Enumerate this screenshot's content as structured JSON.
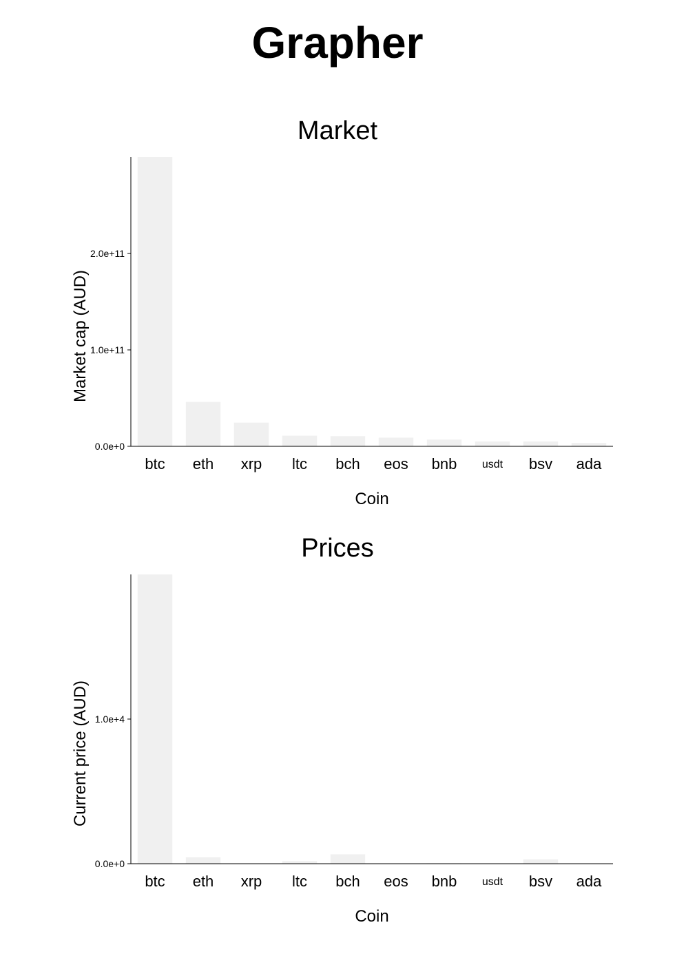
{
  "page": {
    "title": "Grapher"
  },
  "chart_data": [
    {
      "type": "bar",
      "title": "Market",
      "xlabel": "Coin",
      "ylabel": "Market cap (AUD)",
      "categories": [
        "btc",
        "eth",
        "xrp",
        "ltc",
        "bch",
        "eos",
        "bnb",
        "usdt",
        "bsv",
        "ada"
      ],
      "values": [
        300000000000,
        46000000000,
        24500000000,
        11000000000,
        10500000000,
        9000000000,
        7000000000,
        5000000000,
        5000000000,
        3500000000
      ],
      "ylim": [
        0,
        300000000000
      ],
      "yticks": [
        0,
        100000000000,
        200000000000
      ],
      "yticklabels": [
        "0.0e+0",
        "1.0e+11",
        "2.0e+11"
      ],
      "bar_color": "#f0f0f0",
      "grid": false,
      "legend": "none"
    },
    {
      "type": "bar",
      "title": "Prices",
      "xlabel": "Coin",
      "ylabel": "Current price (AUD)",
      "categories": [
        "btc",
        "eth",
        "xrp",
        "ltc",
        "bch",
        "eos",
        "bnb",
        "usdt",
        "bsv",
        "ada"
      ],
      "values": [
        20000,
        450,
        0.5,
        180,
        650,
        6,
        28,
        1.4,
        300,
        0.06
      ],
      "ylim": [
        0,
        20000
      ],
      "yticks": [
        0,
        10000
      ],
      "yticklabels": [
        "0.0e+0",
        "1.0e+4"
      ],
      "bar_color": "#f0f0f0",
      "grid": false,
      "legend": "none"
    }
  ]
}
